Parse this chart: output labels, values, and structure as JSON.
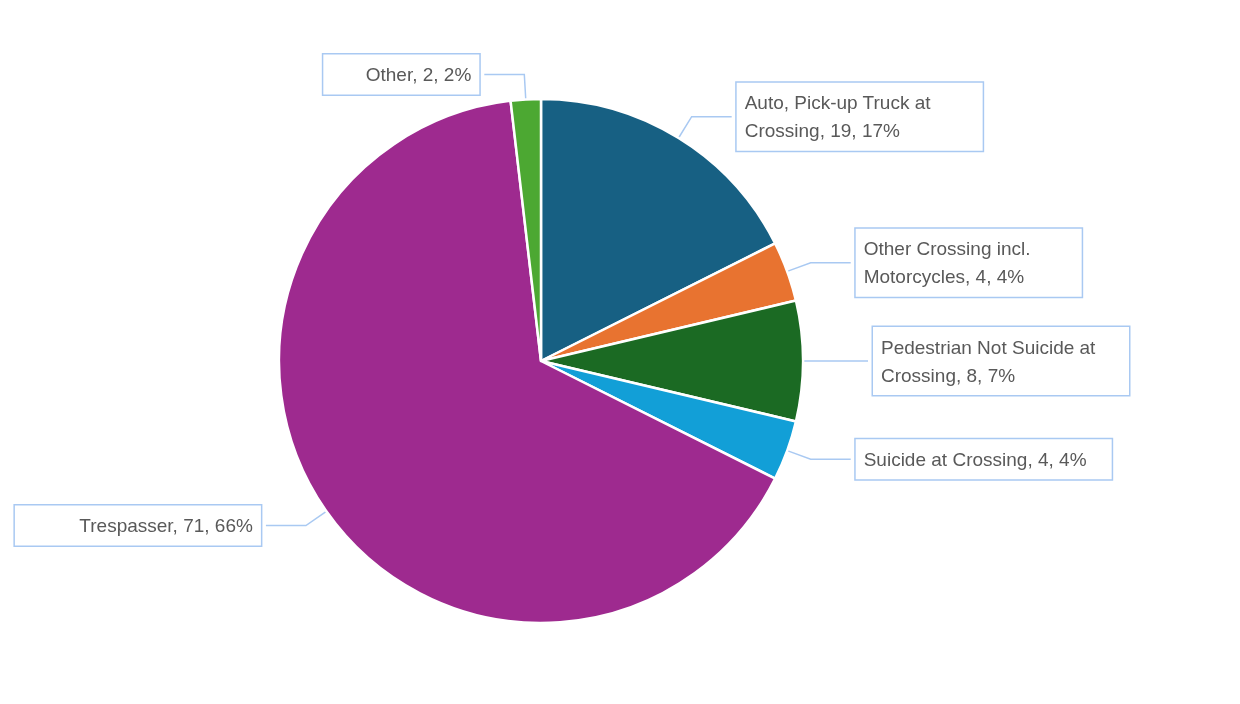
{
  "chart_data": {
    "type": "pie",
    "categories": [
      "Auto, Pick-up Truck at Crossing",
      "Other Crossing incl. Motorcycles",
      "Pedestrian Not Suicide at Crossing",
      "Suicide at Crossing",
      "Trespasser",
      "Other"
    ],
    "values": [
      19,
      4,
      8,
      4,
      71,
      2
    ],
    "value_labels": [
      "19, 17%",
      "4, 4%",
      "8, 7%",
      "4, 4%",
      "71, 66%",
      "2, 2%"
    ],
    "colors": [
      "#176083",
      "#e87330",
      "#1b6a23",
      "#129fd7",
      "#9e2a8f",
      "#4ca832"
    ],
    "legend": false
  }
}
